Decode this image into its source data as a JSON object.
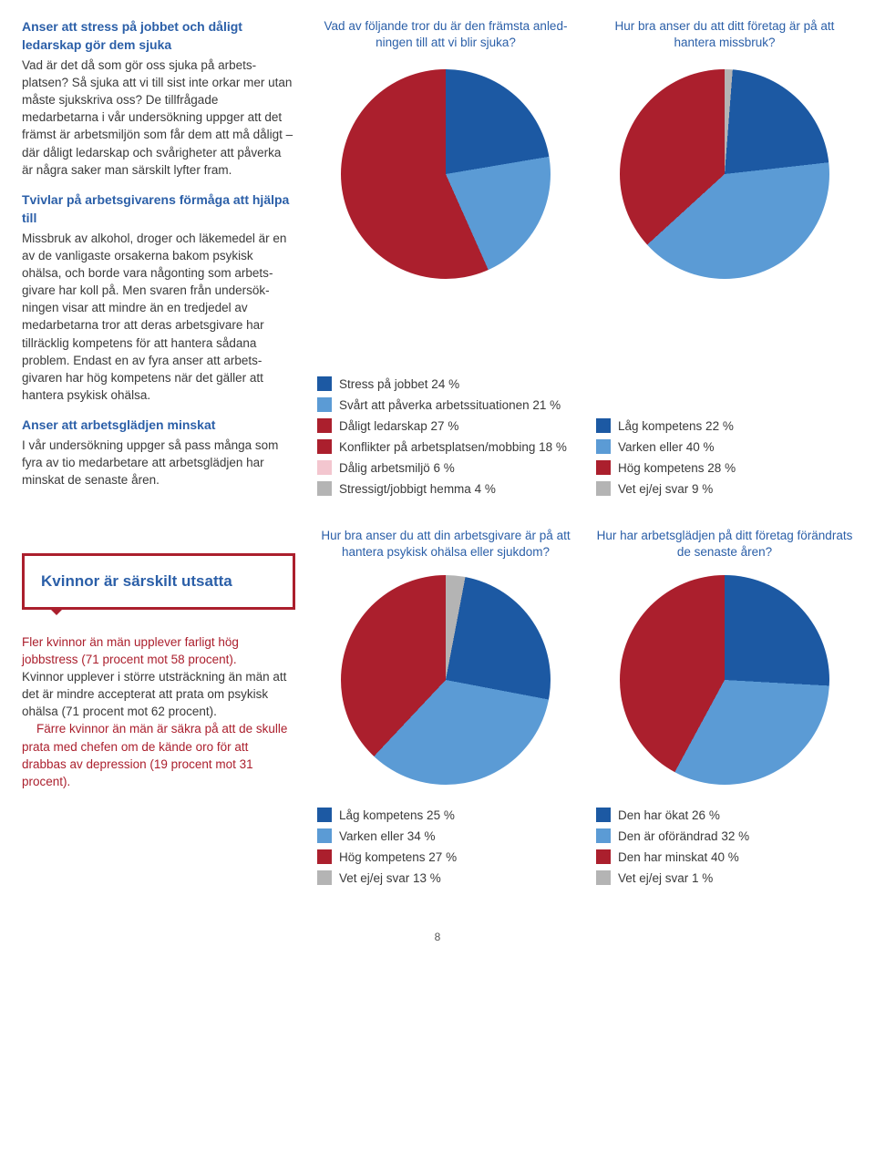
{
  "colors": {
    "blue_dark": "#1c59a3",
    "blue_light": "#5b9bd5",
    "red": "#ab1f2d",
    "grey": "#b4b4b4",
    "pink": "#f3c6cf",
    "text_accent": "#2b5fa8"
  },
  "left": {
    "h1": "Anser att stress på jobbet och dåligt ledarskap gör dem sjuka",
    "p1": "Vad är det då som gör oss sjuka på arbets­platsen? Så sjuka att vi till sist inte orkar mer utan måste sjukskriva oss? De tillfrågade medarbetarna i vår undersökning uppger att det främst är arbetsmiljön som får dem att må dåligt – där dåligt ledarskap och svårig­heter att påverka är några saker man särskilt lyfter fram.",
    "h2": "Tvivlar på arbetsgivarens förmåga att hjälpa till",
    "p2": "Missbruk av alkohol, droger och läkemedel är en av de vanligaste orsakerna bakom psykisk ohälsa, och borde vara någonting som arbets­givare har koll på. Men svaren från undersök­ningen visar att mindre än en tredjedel av medarbetarna tror att deras arbetsgivare har tillräcklig kompetens för att hantera sådana problem. Endast en av fyra anser att arbets­givaren har hög kompetens när det gäller att hantera psykisk ohälsa.",
    "h3": "Anser att arbetsglädjen minskat",
    "p3": "I vår undersökning uppger så pass många som fyra av tio medarbetare att arbetsglädjen har minskat de senaste åren."
  },
  "chart1": {
    "title": "Vad av följande tror du är den främsta anled­ningen till att vi blir sjuka?",
    "type": "pie",
    "slices": [
      {
        "label": "Stress på jobbet 24 %",
        "value": 24,
        "color": "#1c59a3"
      },
      {
        "label": "Svårt att påverka arbetssituationen 21 %",
        "value": 21,
        "color": "#5b9bd5"
      },
      {
        "label": "Dåligt ledarskap 27 %",
        "value": 27,
        "color": "#ab1f2d"
      },
      {
        "label": "Konflikter på arbetsplatsen/mobbing 18 %",
        "value": 18,
        "color": "#ab1f2d"
      },
      {
        "label": "Dålig arbetsmiljö 6 %",
        "value": 6,
        "color": "#f3c6cf"
      },
      {
        "label": "Stressigt/jobbigt hemma 4 %",
        "value": 4,
        "color": "#b4b4b4"
      }
    ],
    "legend_swatches": [
      "#1c59a3",
      "#5b9bd5",
      "#ab1f2d",
      "#ab1f2d",
      "#f3c6cf",
      "#b4b4b4"
    ]
  },
  "chart2": {
    "title": "Hur bra anser du att ditt företag är på att hantera missbruk?",
    "type": "pie",
    "slices": [
      {
        "label": "Låg kompetens 22 %",
        "value": 22,
        "color": "#1c59a3"
      },
      {
        "label": "Varken eller 40 %",
        "value": 40,
        "color": "#5b9bd5"
      },
      {
        "label": "Hög kompetens 28 %",
        "value": 28,
        "color": "#ab1f2d"
      },
      {
        "label": "Vet ej/ej svar 9 %",
        "value": 9,
        "color": "#b4b4b4"
      }
    ]
  },
  "chart3": {
    "title": "Hur bra anser du att din arbetsgivare är på att hantera psykisk ohälsa eller sjukdom?",
    "type": "pie",
    "slices": [
      {
        "label": "Låg kompetens 25 %",
        "value": 25,
        "color": "#1c59a3"
      },
      {
        "label": "Varken eller 34 %",
        "value": 34,
        "color": "#5b9bd5"
      },
      {
        "label": "Hög kompetens 27 %",
        "value": 27,
        "color": "#ab1f2d"
      },
      {
        "label": "Vet ej/ej svar 13 %",
        "value": 13,
        "color": "#b4b4b4"
      }
    ]
  },
  "chart4": {
    "title": "Hur har arbetsglädjen på ditt företag förändrats de senaste åren?",
    "type": "pie",
    "slices": [
      {
        "label": "Den har ökat 26 %",
        "value": 26,
        "color": "#1c59a3"
      },
      {
        "label": "Den är oförändrad 32 %",
        "value": 32,
        "color": "#5b9bd5"
      },
      {
        "label": "Den har minskat 40 %",
        "value": 40,
        "color": "#ab1f2d"
      },
      {
        "label": "Vet ej/ej svar 1 %",
        "value": 1,
        "color": "#b4b4b4"
      }
    ]
  },
  "box": {
    "title": "Kvinnor är särskilt utsatta",
    "lines": [
      {
        "text": "Fler kvinnor än män upplever farligt hög jobbstress (71 procent mot 58 procent).",
        "red": true,
        "indent": false
      },
      {
        "text": "Kvinnor upplever i större utsträck­ning än män att det är mindre accep­terat att prata om psykisk ohälsa (71 procent mot 62 procent).",
        "red": false,
        "indent": false
      },
      {
        "text": "Färre kvinnor än män är säkra på att de skulle prata med chefen om de kände oro för att drabbas av depres­sion (19 procent mot 31 procent).",
        "red": true,
        "indent": true
      }
    ]
  },
  "pagenum": "8"
}
